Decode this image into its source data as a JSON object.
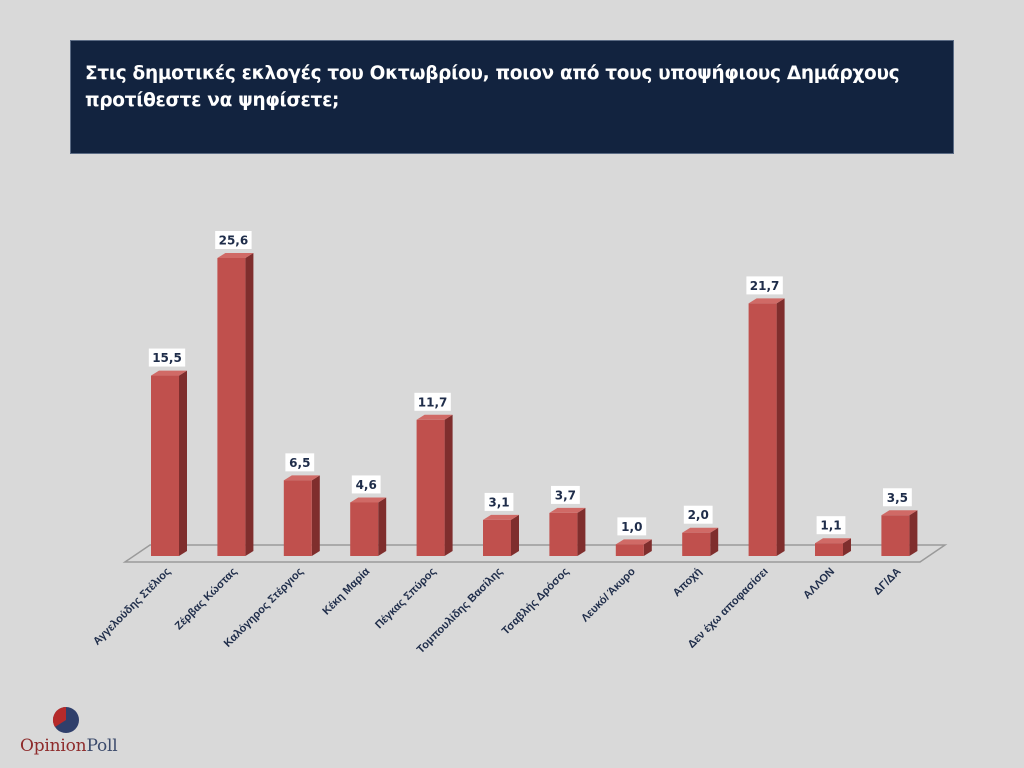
{
  "title": "Στις δημοτικές εκλογές του Οκτωβρίου, ποιον από τους υποψήφιους Δημάρχους προτίθεστε να ψηφίσετε;",
  "logo": {
    "part1": "Opinion",
    "part2": "Poll",
    "colors": {
      "red": "#b52a2a",
      "blue": "#2f3f6b"
    }
  },
  "colors": {
    "bar_front": "#c0504d",
    "bar_side": "#7f2e2d",
    "bar_top": "#d06a66",
    "title_bg": "#12233f",
    "label": "#1f2d4a"
  },
  "chart_data": {
    "type": "bar",
    "style": "3d-column",
    "title": "Στις δημοτικές εκλογές του Οκτωβρίου, ποιον από τους υποψήφιους Δημάρχους προτίθεστε να ψηφίσετε;",
    "xlabel": "",
    "ylabel": "",
    "ylim": [
      0,
      26
    ],
    "grid": false,
    "legend": "none",
    "categories": [
      "Αγγελούδης Στέλιος",
      "Ζέρβας Κώστας",
      "Καλόγηρος Στέργιος",
      "Κέκη Μαρία",
      "Πέγκας Σπύρος",
      "Τομπουλίδης Βασίλης",
      "Τσαβλής Δρόσος",
      "Λευκό/ Άκυρο",
      "Αποχή",
      "Δεν έχω αποφασίσει",
      "ΑΛΛΟΝ",
      "ΔΓ/ΔΑ"
    ],
    "values": [
      15.5,
      25.6,
      6.5,
      4.6,
      11.7,
      3.1,
      3.7,
      1.0,
      2.0,
      21.7,
      1.1,
      3.5
    ],
    "data_labels": [
      "15,5",
      "25,6",
      "6,5",
      "4,6",
      "11,7",
      "3,1",
      "3,7",
      "1,0",
      "2,0",
      "21,7",
      "1,1",
      "3,5"
    ]
  }
}
